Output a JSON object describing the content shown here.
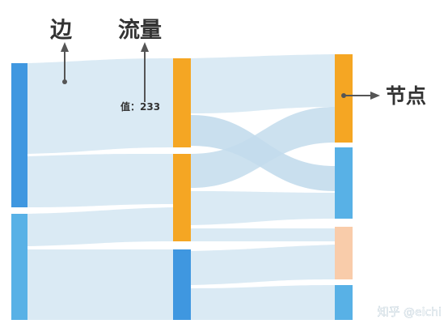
{
  "annotations": {
    "edge_label": "边",
    "flow_label": "流量",
    "node_label": "节点",
    "value_tooltip": "值：233"
  },
  "watermark": "知乎 @eichi",
  "colors": {
    "link_fill": "#cfe4f1",
    "node_blue_dark": "#3f97e0",
    "node_blue": "#58b1e6",
    "node_orange": "#f5a623",
    "node_peach": "#f9ccaa",
    "annotation": "#333333"
  }
}
